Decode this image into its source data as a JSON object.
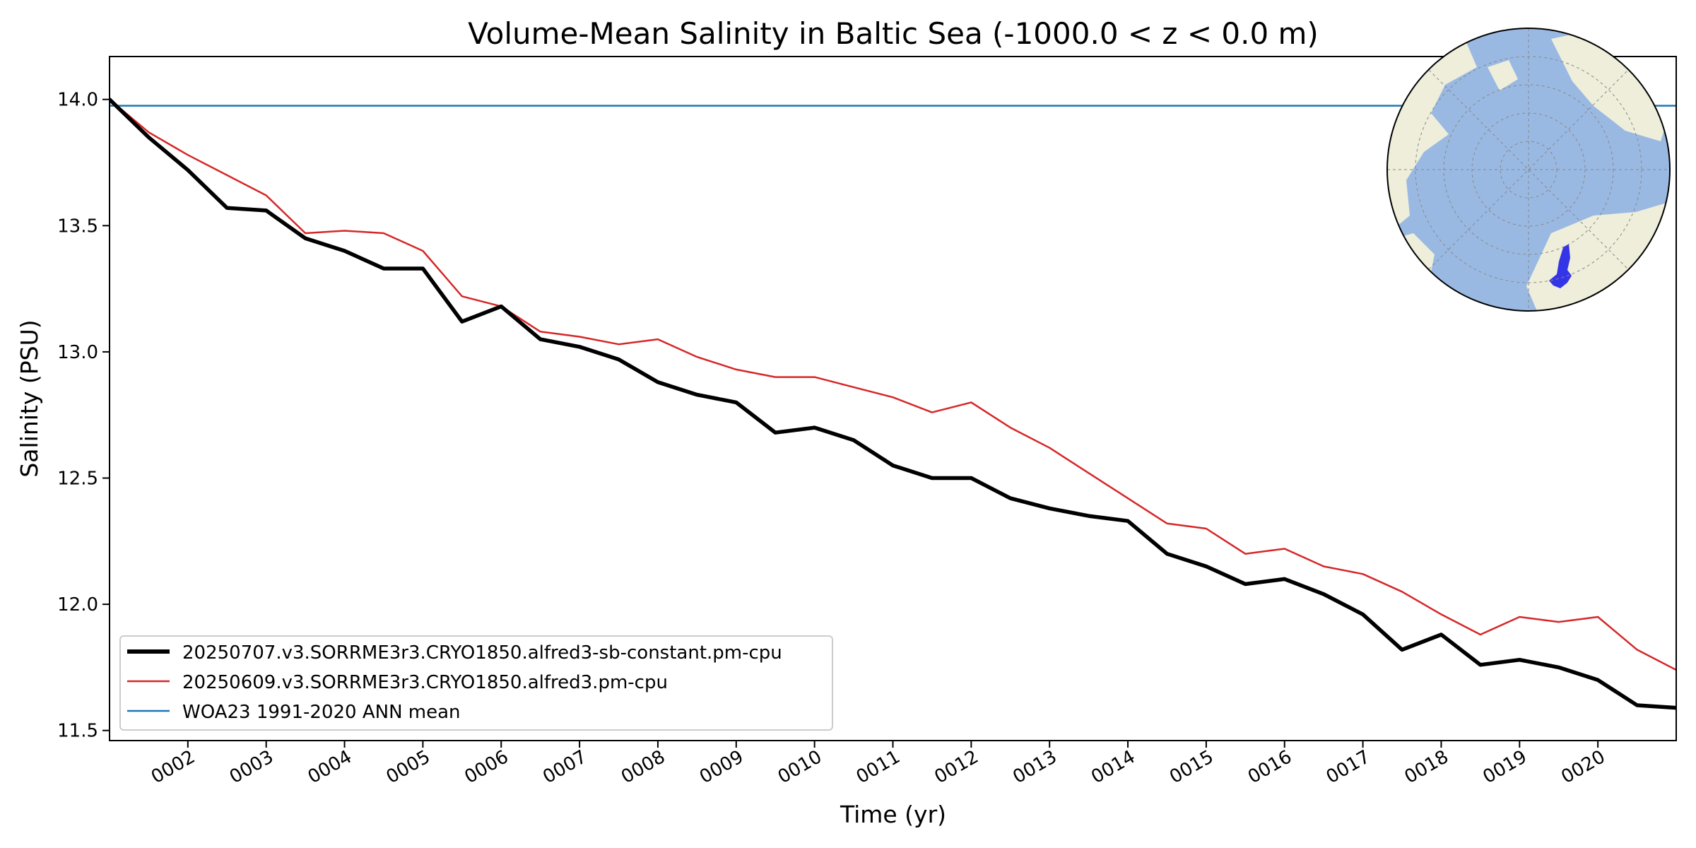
{
  "chart_data": {
    "type": "line",
    "title": "Volume-Mean Salinity in Baltic Sea (-1000.0 < z < 0.0 m)",
    "xlabel": "Time (yr)",
    "ylabel": "Salinity (PSU)",
    "xlim": [
      1.0,
      21.0
    ],
    "ylim": [
      11.46,
      14.17
    ],
    "x_ticks": [
      2,
      3,
      4,
      5,
      6,
      7,
      8,
      9,
      10,
      11,
      12,
      13,
      14,
      15,
      16,
      17,
      18,
      19,
      20
    ],
    "x_tick_labels": [
      "0002",
      "0003",
      "0004",
      "0005",
      "0006",
      "0007",
      "0008",
      "0009",
      "0010",
      "0011",
      "0012",
      "0013",
      "0014",
      "0015",
      "0016",
      "0017",
      "0018",
      "0019",
      "0020"
    ],
    "y_ticks": [
      11.5,
      12.0,
      12.5,
      13.0,
      13.5,
      14.0
    ],
    "y_tick_labels": [
      "11.5",
      "12.0",
      "12.5",
      "13.0",
      "13.5",
      "14.0"
    ],
    "grid": false,
    "legend_position": "lower-left",
    "reference_line": {
      "name": "WOA23 1991-2020 ANN mean",
      "value": 13.975,
      "color": "#1f77b4"
    },
    "series": [
      {
        "name": "20250707.v3.SORRME3r3.CRYO1850.alfred3-sb-constant.pm-cpu",
        "color": "#000000",
        "line_width": "thick",
        "points": [
          [
            1.0,
            14.0
          ],
          [
            1.5,
            13.85
          ],
          [
            2.0,
            13.72
          ],
          [
            2.5,
            13.57
          ],
          [
            3.0,
            13.56
          ],
          [
            3.5,
            13.45
          ],
          [
            4.0,
            13.4
          ],
          [
            4.5,
            13.33
          ],
          [
            5.0,
            13.33
          ],
          [
            5.5,
            13.12
          ],
          [
            6.0,
            13.18
          ],
          [
            6.5,
            13.05
          ],
          [
            7.0,
            13.02
          ],
          [
            7.5,
            12.97
          ],
          [
            8.0,
            12.88
          ],
          [
            8.5,
            12.83
          ],
          [
            9.0,
            12.8
          ],
          [
            9.5,
            12.68
          ],
          [
            10.0,
            12.7
          ],
          [
            10.5,
            12.65
          ],
          [
            11.0,
            12.55
          ],
          [
            11.5,
            12.5
          ],
          [
            12.0,
            12.5
          ],
          [
            12.5,
            12.42
          ],
          [
            13.0,
            12.38
          ],
          [
            13.5,
            12.35
          ],
          [
            14.0,
            12.33
          ],
          [
            14.5,
            12.2
          ],
          [
            15.0,
            12.15
          ],
          [
            15.5,
            12.08
          ],
          [
            16.0,
            12.1
          ],
          [
            16.5,
            12.04
          ],
          [
            17.0,
            11.96
          ],
          [
            17.5,
            11.82
          ],
          [
            18.0,
            11.88
          ],
          [
            18.5,
            11.76
          ],
          [
            19.0,
            11.78
          ],
          [
            19.5,
            11.75
          ],
          [
            20.0,
            11.7
          ],
          [
            20.5,
            11.6
          ],
          [
            21.0,
            11.59
          ]
        ]
      },
      {
        "name": "20250609.v3.SORRME3r3.CRYO1850.alfred3.pm-cpu",
        "color": "#d62728",
        "line_width": "thin",
        "points": [
          [
            1.0,
            14.0
          ],
          [
            1.5,
            13.87
          ],
          [
            2.0,
            13.78
          ],
          [
            2.5,
            13.7
          ],
          [
            3.0,
            13.62
          ],
          [
            3.5,
            13.47
          ],
          [
            4.0,
            13.48
          ],
          [
            4.5,
            13.47
          ],
          [
            5.0,
            13.4
          ],
          [
            5.5,
            13.22
          ],
          [
            6.0,
            13.18
          ],
          [
            6.5,
            13.08
          ],
          [
            7.0,
            13.06
          ],
          [
            7.5,
            13.03
          ],
          [
            8.0,
            13.05
          ],
          [
            8.5,
            12.98
          ],
          [
            9.0,
            12.93
          ],
          [
            9.5,
            12.9
          ],
          [
            10.0,
            12.9
          ],
          [
            10.5,
            12.86
          ],
          [
            11.0,
            12.82
          ],
          [
            11.5,
            12.76
          ],
          [
            12.0,
            12.8
          ],
          [
            12.5,
            12.7
          ],
          [
            13.0,
            12.62
          ],
          [
            13.5,
            12.52
          ],
          [
            14.0,
            12.42
          ],
          [
            14.5,
            12.32
          ],
          [
            15.0,
            12.3
          ],
          [
            15.5,
            12.2
          ],
          [
            16.0,
            12.22
          ],
          [
            16.5,
            12.15
          ],
          [
            17.0,
            12.12
          ],
          [
            17.5,
            12.05
          ],
          [
            18.0,
            11.96
          ],
          [
            18.5,
            11.88
          ],
          [
            19.0,
            11.95
          ],
          [
            19.5,
            11.93
          ],
          [
            20.0,
            11.95
          ],
          [
            20.5,
            11.82
          ],
          [
            21.0,
            11.74
          ]
        ]
      }
    ],
    "legend_entries": [
      {
        "label": "20250707.v3.SORRME3r3.CRYO1850.alfred3-sb-constant.pm-cpu",
        "color": "#000000"
      },
      {
        "label": "20250609.v3.SORRME3r3.CRYO1850.alfred3.pm-cpu",
        "color": "#d62728"
      },
      {
        "label": "WOA23 1991-2020 ANN mean",
        "color": "#1f77b4"
      }
    ],
    "inset_map": {
      "projection": "north-polar-stereographic",
      "ocean_color": "#9ab9e2",
      "land_color": "#eeeedb",
      "region_color": "#3535e8",
      "highlighted_region": "Baltic Sea"
    }
  }
}
